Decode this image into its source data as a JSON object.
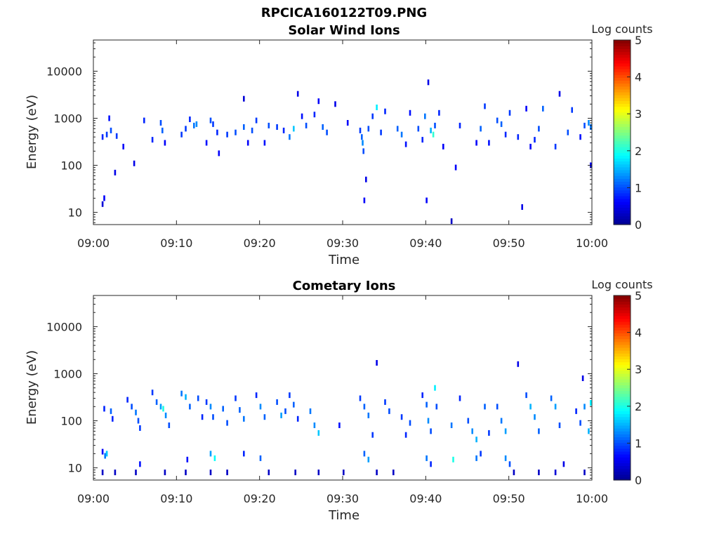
{
  "figure_title": "RPCICA160122T09.PNG",
  "colormap": [
    "#00008f",
    "#0000ff",
    "#0080ff",
    "#00ffff",
    "#80ff80",
    "#ffff00",
    "#ff8000",
    "#ff0000",
    "#800000"
  ],
  "chart_data": [
    {
      "type": "heatmap",
      "title": "Solar Wind Ions",
      "xlabel": "Time",
      "ylabel": "Energy (eV)",
      "x_range_minutes": [
        0,
        60
      ],
      "x_ticks": [
        "09:00",
        "09:10",
        "09:20",
        "09:30",
        "09:40",
        "09:50",
        "10:00"
      ],
      "y_scale": "log",
      "y_range": [
        5.5,
        46000
      ],
      "y_ticks": [
        "10",
        "100",
        "1000",
        "10000"
      ],
      "colorbar": {
        "label": "Log counts",
        "range": [
          0,
          5
        ],
        "ticks": [
          "0",
          "1",
          "2",
          "3",
          "4",
          "5"
        ]
      },
      "cells": [
        [
          1.0,
          15,
          0.4
        ],
        [
          1.2,
          20,
          0.6
        ],
        [
          1.0,
          400,
          0.8
        ],
        [
          1.5,
          450,
          0.9
        ],
        [
          2.0,
          550,
          1.0
        ],
        [
          1.8,
          1000,
          0.7
        ],
        [
          2.5,
          70,
          0.5
        ],
        [
          2.7,
          420,
          0.9
        ],
        [
          3.5,
          250,
          0.6
        ],
        [
          4.8,
          110,
          0.5
        ],
        [
          6.0,
          900,
          0.8
        ],
        [
          7.0,
          350,
          0.8
        ],
        [
          8.0,
          800,
          1.0
        ],
        [
          8.2,
          550,
          1.1
        ],
        [
          8.5,
          300,
          0.6
        ],
        [
          10.5,
          450,
          0.9
        ],
        [
          11.0,
          600,
          0.9
        ],
        [
          11.5,
          950,
          0.8
        ],
        [
          12.0,
          700,
          1.2
        ],
        [
          12.3,
          750,
          1.3
        ],
        [
          13.5,
          300,
          0.7
        ],
        [
          14.0,
          900,
          1.0
        ],
        [
          14.3,
          750,
          0.9
        ],
        [
          14.8,
          500,
          0.8
        ],
        [
          15.0,
          180,
          0.6
        ],
        [
          16.0,
          450,
          0.9
        ],
        [
          17.0,
          500,
          1.0
        ],
        [
          18.0,
          650,
          1.1
        ],
        [
          18.5,
          300,
          0.6
        ],
        [
          19.0,
          550,
          1.0
        ],
        [
          19.5,
          900,
          0.9
        ],
        [
          20.5,
          300,
          0.7
        ],
        [
          21.0,
          700,
          1.0
        ],
        [
          22.0,
          650,
          0.9
        ],
        [
          22.8,
          550,
          0.8
        ],
        [
          23.5,
          400,
          1.2
        ],
        [
          24.0,
          600,
          1.6
        ],
        [
          24.5,
          3300,
          0.5
        ],
        [
          25.0,
          1100,
          0.7
        ],
        [
          25.5,
          700,
          1.0
        ],
        [
          26.5,
          1200,
          0.8
        ],
        [
          27.0,
          2300,
          0.6
        ],
        [
          27.5,
          650,
          1.1
        ],
        [
          28.0,
          500,
          1.0
        ],
        [
          29.0,
          2000,
          0.5
        ],
        [
          18.0,
          2600,
          0.4
        ],
        [
          30.5,
          800,
          0.6
        ],
        [
          32.0,
          550,
          0.9
        ],
        [
          32.2,
          400,
          1.1
        ],
        [
          32.3,
          300,
          1.3
        ],
        [
          32.4,
          200,
          1.0
        ],
        [
          32.5,
          18,
          0.6
        ],
        [
          32.7,
          50,
          0.5
        ],
        [
          33.0,
          600,
          1.0
        ],
        [
          33.5,
          1100,
          0.9
        ],
        [
          34.0,
          1700,
          1.8
        ],
        [
          34.5,
          500,
          0.9
        ],
        [
          35.0,
          1400,
          0.8
        ],
        [
          36.5,
          600,
          1.1
        ],
        [
          37.0,
          450,
          1.2
        ],
        [
          37.5,
          280,
          0.7
        ],
        [
          38.0,
          1300,
          0.7
        ],
        [
          39.0,
          600,
          1.0
        ],
        [
          39.5,
          350,
          0.8
        ],
        [
          39.8,
          1100,
          1.2
        ],
        [
          40.0,
          18,
          0.6
        ],
        [
          40.2,
          5800,
          0.5
        ],
        [
          40.5,
          550,
          1.5
        ],
        [
          40.8,
          450,
          2.1
        ],
        [
          41.0,
          700,
          1.0
        ],
        [
          41.5,
          1300,
          0.8
        ],
        [
          42.0,
          250,
          0.6
        ],
        [
          43.0,
          6.5,
          0.3
        ],
        [
          43.5,
          90,
          0.6
        ],
        [
          44.0,
          700,
          0.8
        ],
        [
          46.0,
          300,
          0.6
        ],
        [
          46.5,
          600,
          1.1
        ],
        [
          47.0,
          1800,
          0.9
        ],
        [
          47.5,
          300,
          0.7
        ],
        [
          48.5,
          900,
          1.0
        ],
        [
          49.0,
          750,
          1.1
        ],
        [
          49.5,
          450,
          0.8
        ],
        [
          50.0,
          1300,
          0.9
        ],
        [
          51.0,
          400,
          0.8
        ],
        [
          52.0,
          1600,
          0.6
        ],
        [
          52.5,
          250,
          0.6
        ],
        [
          53.0,
          350,
          0.8
        ],
        [
          53.5,
          600,
          1.0
        ],
        [
          54.0,
          1600,
          1.1
        ],
        [
          55.5,
          250,
          0.9
        ],
        [
          56.0,
          3300,
          0.5
        ],
        [
          57.0,
          500,
          1.0
        ],
        [
          57.5,
          1500,
          0.9
        ],
        [
          58.5,
          400,
          0.7
        ],
        [
          59.0,
          700,
          1.0
        ],
        [
          59.5,
          800,
          1.3
        ],
        [
          60.0,
          650,
          1.2
        ],
        [
          59.8,
          100,
          0.5
        ],
        [
          51.5,
          13,
          0.5
        ]
      ]
    },
    {
      "type": "heatmap",
      "title": "Cometary Ions",
      "xlabel": "Time",
      "ylabel": "Energy (eV)",
      "x_range_minutes": [
        0,
        60
      ],
      "x_ticks": [
        "09:00",
        "09:10",
        "09:20",
        "09:30",
        "09:40",
        "09:50",
        "10:00"
      ],
      "y_scale": "log",
      "y_range": [
        5.5,
        46000
      ],
      "y_ticks": [
        "10",
        "100",
        "1000",
        "10000"
      ],
      "colorbar": {
        "label": "Log counts",
        "range": [
          0,
          5
        ],
        "ticks": [
          "0",
          "1",
          "2",
          "3",
          "4",
          "5"
        ]
      },
      "cells": [
        [
          1.0,
          22,
          0.6
        ],
        [
          1.3,
          18,
          1.2
        ],
        [
          1.5,
          20,
          1.6
        ],
        [
          1.0,
          8,
          0.3
        ],
        [
          1.2,
          180,
          0.8
        ],
        [
          2.0,
          160,
          1.1
        ],
        [
          2.2,
          110,
          0.8
        ],
        [
          2.5,
          8,
          0.3
        ],
        [
          4.0,
          280,
          0.8
        ],
        [
          4.5,
          200,
          1.0
        ],
        [
          5.0,
          150,
          1.2
        ],
        [
          5.3,
          100,
          1.0
        ],
        [
          5.5,
          70,
          0.9
        ],
        [
          5.0,
          8,
          0.3
        ],
        [
          5.5,
          12,
          0.7
        ],
        [
          7.0,
          400,
          0.9
        ],
        [
          7.5,
          250,
          1.1
        ],
        [
          8.0,
          200,
          1.4
        ],
        [
          8.3,
          180,
          2.0
        ],
        [
          8.6,
          130,
          1.3
        ],
        [
          9.0,
          80,
          1.0
        ],
        [
          8.5,
          8,
          0.3
        ],
        [
          10.5,
          380,
          1.2
        ],
        [
          11.0,
          320,
          1.5
        ],
        [
          11.5,
          200,
          1.1
        ],
        [
          11.2,
          15,
          0.7
        ],
        [
          11.0,
          8,
          0.3
        ],
        [
          12.5,
          300,
          1.0
        ],
        [
          13.0,
          120,
          0.8
        ],
        [
          13.5,
          250,
          0.9
        ],
        [
          14.0,
          200,
          1.3
        ],
        [
          14.3,
          120,
          1.0
        ],
        [
          14.0,
          20,
          1.4
        ],
        [
          14.5,
          16,
          1.9
        ],
        [
          14.0,
          8,
          0.3
        ],
        [
          15.5,
          180,
          1.1
        ],
        [
          16.0,
          90,
          1.0
        ],
        [
          16.0,
          8,
          0.3
        ],
        [
          17.0,
          300,
          0.9
        ],
        [
          17.5,
          170,
          1.1
        ],
        [
          18.0,
          110,
          1.2
        ],
        [
          18.0,
          20,
          0.8
        ],
        [
          19.5,
          350,
          0.8
        ],
        [
          20.0,
          200,
          1.3
        ],
        [
          20.5,
          120,
          1.1
        ],
        [
          20.0,
          16,
          1.1
        ],
        [
          21.0,
          8,
          0.3
        ],
        [
          22.0,
          250,
          1.0
        ],
        [
          22.5,
          130,
          1.4
        ],
        [
          23.0,
          160,
          1.0
        ],
        [
          23.5,
          350,
          0.9
        ],
        [
          24.0,
          220,
          1.1
        ],
        [
          24.5,
          110,
          0.8
        ],
        [
          24.2,
          8,
          0.3
        ],
        [
          26.0,
          160,
          1.2
        ],
        [
          26.5,
          80,
          1.3
        ],
        [
          27.0,
          55,
          1.6
        ],
        [
          27.0,
          8,
          0.3
        ],
        [
          29.5,
          80,
          0.7
        ],
        [
          30.0,
          8,
          0.3
        ],
        [
          32.0,
          300,
          0.9
        ],
        [
          32.5,
          200,
          1.1
        ],
        [
          33.0,
          130,
          1.2
        ],
        [
          32.5,
          20,
          1.1
        ],
        [
          33.0,
          15,
          1.4
        ],
        [
          33.5,
          50,
          0.9
        ],
        [
          34.0,
          1700,
          0.5
        ],
        [
          34.0,
          8,
          0.3
        ],
        [
          35.0,
          250,
          0.9
        ],
        [
          35.5,
          160,
          1.0
        ],
        [
          36.0,
          8,
          0.3
        ],
        [
          37.0,
          120,
          0.9
        ],
        [
          37.5,
          50,
          0.8
        ],
        [
          38.0,
          90,
          1.0
        ],
        [
          39.5,
          350,
          0.8
        ],
        [
          40.0,
          220,
          1.1
        ],
        [
          40.2,
          100,
          1.3
        ],
        [
          40.5,
          60,
          1.0
        ],
        [
          40.0,
          16,
          1.2
        ],
        [
          40.5,
          12,
          0.8
        ],
        [
          41.0,
          500,
          1.8
        ],
        [
          41.2,
          200,
          1.0
        ],
        [
          43.0,
          80,
          1.2
        ],
        [
          43.2,
          15,
          2.0
        ],
        [
          44.0,
          300,
          0.8
        ],
        [
          45.0,
          100,
          1.0
        ],
        [
          45.5,
          60,
          1.3
        ],
        [
          46.0,
          40,
          1.5
        ],
        [
          46.0,
          16,
          1.2
        ],
        [
          46.5,
          20,
          0.9
        ],
        [
          47.0,
          200,
          1.1
        ],
        [
          47.5,
          55,
          0.9
        ],
        [
          48.5,
          200,
          1.0
        ],
        [
          49.0,
          100,
          1.2
        ],
        [
          49.5,
          60,
          1.4
        ],
        [
          49.5,
          16,
          1.3
        ],
        [
          50.0,
          12,
          1.0
        ],
        [
          50.5,
          8,
          0.3
        ],
        [
          51.0,
          1600,
          0.5
        ],
        [
          52.0,
          350,
          1.0
        ],
        [
          52.5,
          200,
          1.5
        ],
        [
          53.0,
          120,
          1.3
        ],
        [
          53.5,
          60,
          1.1
        ],
        [
          53.5,
          8,
          0.3
        ],
        [
          55.0,
          300,
          1.1
        ],
        [
          55.5,
          200,
          1.4
        ],
        [
          56.0,
          80,
          1.0
        ],
        [
          55.5,
          8,
          0.4
        ],
        [
          56.5,
          12,
          0.5
        ],
        [
          58.0,
          160,
          0.8
        ],
        [
          58.5,
          90,
          1.0
        ],
        [
          59.0,
          200,
          1.3
        ],
        [
          59.5,
          60,
          1.5
        ],
        [
          59.8,
          240,
          1.8
        ],
        [
          59.0,
          8,
          0.3
        ],
        [
          58.8,
          800,
          0.5
        ]
      ]
    }
  ]
}
